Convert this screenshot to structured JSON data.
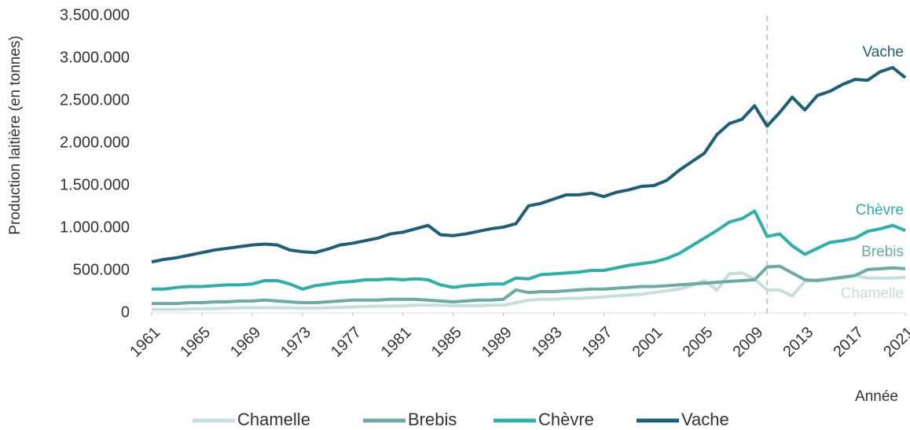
{
  "chart_data": {
    "type": "line",
    "y_label": "Production laitière (en tonnes)",
    "x_label": "Année",
    "x": [
      1961,
      1962,
      1963,
      1964,
      1965,
      1966,
      1967,
      1968,
      1969,
      1970,
      1971,
      1972,
      1973,
      1974,
      1975,
      1976,
      1977,
      1978,
      1979,
      1980,
      1981,
      1982,
      1983,
      1984,
      1985,
      1986,
      1987,
      1988,
      1989,
      1990,
      1991,
      1992,
      1993,
      1994,
      1995,
      1996,
      1997,
      1998,
      1999,
      2000,
      2001,
      2002,
      2003,
      2004,
      2005,
      2006,
      2007,
      2008,
      2009,
      2010,
      2011,
      2012,
      2013,
      2014,
      2015,
      2016,
      2017,
      2018,
      2019,
      2020,
      2021
    ],
    "series": [
      {
        "name": "Chamelle",
        "color": "#c5dfdd",
        "values": [
          40000,
          40000,
          40000,
          45000,
          50000,
          50000,
          55000,
          60000,
          60000,
          60000,
          60000,
          60000,
          55000,
          55000,
          60000,
          65000,
          70000,
          75000,
          80000,
          80000,
          85000,
          90000,
          90000,
          90000,
          85000,
          85000,
          85000,
          90000,
          90000,
          120000,
          150000,
          160000,
          160000,
          170000,
          170000,
          180000,
          190000,
          200000,
          210000,
          220000,
          240000,
          260000,
          280000,
          320000,
          380000,
          270000,
          460000,
          470000,
          400000,
          270000,
          270000,
          200000,
          370000,
          390000,
          400000,
          410000,
          440000,
          410000,
          410000,
          410000,
          420000
        ]
      },
      {
        "name": "Brebis",
        "color": "#6aaba5",
        "values": [
          110000,
          110000,
          110000,
          120000,
          120000,
          130000,
          130000,
          140000,
          140000,
          150000,
          140000,
          130000,
          120000,
          120000,
          130000,
          140000,
          150000,
          150000,
          150000,
          160000,
          160000,
          160000,
          150000,
          140000,
          130000,
          140000,
          150000,
          150000,
          160000,
          270000,
          240000,
          250000,
          250000,
          260000,
          270000,
          280000,
          280000,
          290000,
          300000,
          310000,
          310000,
          320000,
          330000,
          340000,
          350000,
          360000,
          370000,
          380000,
          390000,
          540000,
          550000,
          470000,
          390000,
          380000,
          400000,
          420000,
          440000,
          510000,
          520000,
          530000,
          520000
        ]
      },
      {
        "name": "Chèvre",
        "color": "#2bb0ab",
        "values": [
          280000,
          280000,
          300000,
          310000,
          310000,
          320000,
          330000,
          330000,
          340000,
          380000,
          380000,
          340000,
          280000,
          320000,
          340000,
          360000,
          370000,
          390000,
          390000,
          400000,
          390000,
          400000,
          390000,
          330000,
          300000,
          320000,
          330000,
          340000,
          340000,
          410000,
          400000,
          450000,
          460000,
          470000,
          480000,
          500000,
          500000,
          530000,
          560000,
          580000,
          600000,
          640000,
          700000,
          790000,
          880000,
          970000,
          1070000,
          1110000,
          1200000,
          900000,
          930000,
          790000,
          690000,
          760000,
          830000,
          850000,
          880000,
          960000,
          990000,
          1030000,
          970000
        ]
      },
      {
        "name": "Vache",
        "color": "#1c5f78",
        "values": [
          600000,
          630000,
          650000,
          680000,
          710000,
          740000,
          760000,
          780000,
          800000,
          810000,
          800000,
          740000,
          720000,
          710000,
          750000,
          800000,
          820000,
          850000,
          880000,
          930000,
          950000,
          990000,
          1030000,
          920000,
          910000,
          930000,
          960000,
          990000,
          1010000,
          1050000,
          1260000,
          1290000,
          1340000,
          1390000,
          1390000,
          1410000,
          1370000,
          1420000,
          1450000,
          1490000,
          1500000,
          1560000,
          1680000,
          1780000,
          1880000,
          2100000,
          2230000,
          2280000,
          2440000,
          2200000,
          2360000,
          2540000,
          2390000,
          2560000,
          2610000,
          2690000,
          2750000,
          2740000,
          2840000,
          2890000,
          2770000
        ]
      }
    ],
    "xlim": [
      1961,
      2021
    ],
    "xticks": [
      1961,
      1965,
      1969,
      1973,
      1977,
      1981,
      1985,
      1989,
      1993,
      1997,
      2001,
      2005,
      2009,
      2013,
      2017,
      2021
    ],
    "ylim": [
      0,
      3500000
    ],
    "yticks": [
      0,
      {
        "value": 500000,
        "label": "500.000"
      },
      {
        "value": 1000000,
        "label": "1.000.000"
      },
      {
        "value": 1500000,
        "label": "1.500.000"
      },
      {
        "value": 2000000,
        "label": "2.000.000"
      },
      {
        "value": 2500000,
        "label": "2.500.000"
      },
      {
        "value": 3000000,
        "label": "3.000.000"
      },
      {
        "value": 3500000,
        "label": "3.500.000"
      }
    ],
    "reference_line": 2010,
    "legend": "bottom"
  }
}
